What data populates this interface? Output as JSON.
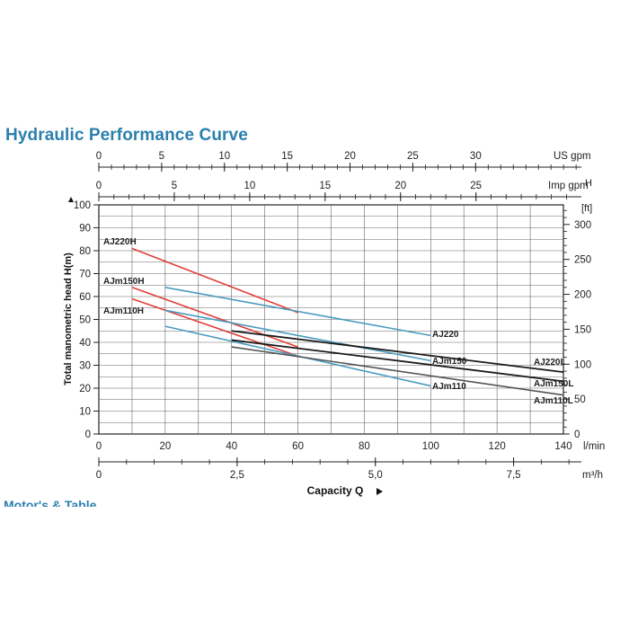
{
  "title": "Hydraulic Performance Curve",
  "cut_heading": "Motor's & Table",
  "chart_data": {
    "type": "line",
    "axes": {
      "usgpm": {
        "label": "US gpm",
        "ticks": [
          0,
          5,
          10,
          15,
          20,
          25,
          30
        ],
        "range": [
          0,
          38
        ]
      },
      "impgpm": {
        "label": "Imp gpm",
        "ticks": [
          0,
          5,
          10,
          15,
          20,
          25
        ],
        "range": [
          0,
          32
        ]
      },
      "lmin": {
        "label": "l/min",
        "ticks": [
          0,
          20,
          40,
          60,
          80,
          100,
          120,
          140
        ],
        "range": [
          0,
          145
        ]
      },
      "m3h": {
        "label": "m³/h",
        "ticks": [
          "0",
          "2,5",
          "5,0",
          "7,5"
        ],
        "tick_values": [
          0,
          2.5,
          5,
          7.5
        ],
        "range": [
          0,
          8.7
        ]
      },
      "y_m": {
        "label": "Total manometric head H(m)",
        "ticks": [
          0,
          10,
          20,
          30,
          40,
          50,
          60,
          70,
          80,
          90,
          100
        ],
        "range": [
          0,
          100
        ]
      },
      "y_ft": {
        "label_top": "H",
        "label_unit": "[ft]",
        "ticks": [
          0,
          50,
          100,
          150,
          200,
          250,
          300
        ],
        "range": [
          0,
          328
        ]
      },
      "x_title": "Capacity Q"
    },
    "series": [
      {
        "name": "AJ220H",
        "color": "#e0403a",
        "points": [
          [
            10,
            81
          ],
          [
            60,
            53
          ]
        ]
      },
      {
        "name": "AJm150H",
        "color": "#e0403a",
        "points": [
          [
            10,
            64
          ],
          [
            60,
            38
          ]
        ]
      },
      {
        "name": "AJm110H",
        "color": "#e0403a",
        "points": [
          [
            10,
            59
          ],
          [
            60,
            34
          ]
        ]
      },
      {
        "name": "AJ220",
        "color": "#4a9bbf",
        "points": [
          [
            20,
            64
          ],
          [
            100,
            43
          ]
        ]
      },
      {
        "name": "AJm150",
        "color": "#4a9bbf",
        "points": [
          [
            20,
            54
          ],
          [
            100,
            32
          ]
        ]
      },
      {
        "name": "AJm110",
        "color": "#4a9bbf",
        "points": [
          [
            20,
            47
          ],
          [
            100,
            21
          ]
        ]
      },
      {
        "name": "AJ220L",
        "color": "#1a1a1a",
        "points": [
          [
            40,
            45
          ],
          [
            140,
            27
          ]
        ]
      },
      {
        "name": "AJm150L",
        "color": "#1a1a1a",
        "points": [
          [
            40,
            41
          ],
          [
            140,
            23
          ]
        ]
      },
      {
        "name": "AJm110L",
        "color": "#555555",
        "points": [
          [
            40,
            38
          ],
          [
            140,
            17
          ]
        ]
      }
    ],
    "grid": true
  }
}
